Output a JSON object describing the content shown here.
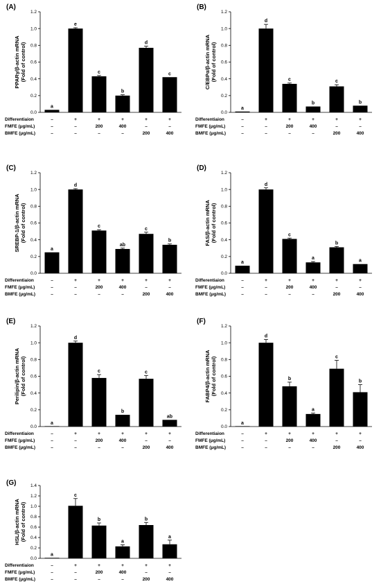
{
  "conditions": {
    "rows": [
      {
        "label": "Differentiaion",
        "values": [
          "–",
          "+",
          "+",
          "+",
          "+",
          "+"
        ]
      },
      {
        "label": "FMFE (μg/mL)",
        "values": [
          "–",
          "–",
          "200",
          "400",
          "–",
          "–"
        ]
      },
      {
        "label": "BMFE (μg/mL)",
        "values": [
          "–",
          "–",
          "–",
          "–",
          "200",
          "400"
        ]
      }
    ]
  },
  "chart_data": [
    {
      "type": "bar",
      "panel": "(A)",
      "ylabel": [
        "PPARγ/β-actin mRNA",
        "(Fold of control)"
      ],
      "ylim": [
        0,
        1.2
      ],
      "ticks": [
        "0.0",
        "0.2",
        "0.4",
        "0.6",
        "0.8",
        "1.0",
        "1.2"
      ],
      "values": [
        0.03,
        1.0,
        0.43,
        0.2,
        0.77,
        0.42
      ],
      "errors": [
        0.0,
        0.01,
        0.01,
        0.01,
        0.02,
        0.0
      ],
      "labels": [
        "a",
        "e",
        "c",
        "b",
        "d",
        "c"
      ]
    },
    {
      "type": "bar",
      "panel": "(B)",
      "ylabel": [
        "C/EBPα/β-actin mRNA",
        "(Fold of control)"
      ],
      "ylim": [
        0,
        1.2
      ],
      "ticks": [
        "0.0",
        "0.2",
        "0.4",
        "0.6",
        "0.8",
        "1.0",
        "1.2"
      ],
      "values": [
        0.01,
        1.0,
        0.34,
        0.07,
        0.31,
        0.08
      ],
      "errors": [
        0.0,
        0.05,
        0.01,
        0.0,
        0.02,
        0.0
      ],
      "labels": [
        "a",
        "d",
        "c",
        "b",
        "c",
        "b"
      ]
    },
    {
      "type": "bar",
      "panel": "(C)",
      "ylabel": [
        "SREBP-1/β-actin mRNA",
        "(Fold of control)"
      ],
      "ylim": [
        0,
        1.2
      ],
      "ticks": [
        "0.0",
        "0.2",
        "0.4",
        "0.6",
        "0.8",
        "1.0",
        "1.2"
      ],
      "values": [
        0.25,
        1.0,
        0.51,
        0.29,
        0.47,
        0.34
      ],
      "errors": [
        0.0,
        0.01,
        0.01,
        0.01,
        0.02,
        0.01
      ],
      "labels": [
        "a",
        "d",
        "c",
        "ab",
        "c",
        "b"
      ]
    },
    {
      "type": "bar",
      "panel": "(D)",
      "ylabel": [
        "FAS/β-actin mRNA",
        "(Fold of control)"
      ],
      "ylim": [
        0,
        1.2
      ],
      "ticks": [
        "0.0",
        "0.2",
        "0.4",
        "0.6",
        "0.8",
        "1.0",
        "1.2"
      ],
      "values": [
        0.09,
        1.0,
        0.41,
        0.13,
        0.31,
        0.11
      ],
      "errors": [
        0.0,
        0.02,
        0.01,
        0.01,
        0.01,
        0.0
      ],
      "labels": [
        "a",
        "d",
        "c",
        "a",
        "b",
        "a"
      ]
    },
    {
      "type": "bar",
      "panel": "(E)",
      "ylabel": [
        "Perilipin/β-actin mRNA",
        "(Fold of control)"
      ],
      "ylim": [
        0,
        1.2
      ],
      "ticks": [
        "0.0",
        "0.2",
        "0.4",
        "0.6",
        "0.8",
        "1.0",
        "1.2"
      ],
      "values": [
        0.0,
        1.0,
        0.58,
        0.14,
        0.57,
        0.08
      ],
      "errors": [
        0.0,
        0.02,
        0.04,
        0.0,
        0.04,
        0.0
      ],
      "labels": [
        "a",
        "d",
        "c",
        "b",
        "c",
        "ab"
      ]
    },
    {
      "type": "bar",
      "panel": "(F)",
      "ylabel": [
        "FABP4/β-actin mRNA",
        "(Fold of control)"
      ],
      "ylim": [
        0,
        1.2
      ],
      "ticks": [
        "0.0",
        "0.2",
        "0.4",
        "0.6",
        "0.8",
        "1.0",
        "1.2"
      ],
      "values": [
        0.0,
        1.0,
        0.48,
        0.15,
        0.69,
        0.41
      ],
      "errors": [
        0.0,
        0.04,
        0.05,
        0.01,
        0.1,
        0.09
      ],
      "labels": [
        "a",
        "d",
        "b",
        "a",
        "c",
        "b"
      ]
    },
    {
      "type": "bar",
      "panel": "(G)",
      "ylabel": [
        "HSL/β-actin mRNA",
        "(Fold of control)"
      ],
      "ylim": [
        0,
        1.4
      ],
      "ticks": [
        "0.0",
        "0.2",
        "0.4",
        "0.6",
        "0.8",
        "1.0",
        "1.2",
        "1.4"
      ],
      "values": [
        0.01,
        1.01,
        0.63,
        0.23,
        0.64,
        0.27
      ],
      "errors": [
        0.0,
        0.14,
        0.05,
        0.03,
        0.05,
        0.08
      ],
      "labels": [
        "a",
        "c",
        "b",
        "a",
        "b",
        "a"
      ]
    }
  ]
}
